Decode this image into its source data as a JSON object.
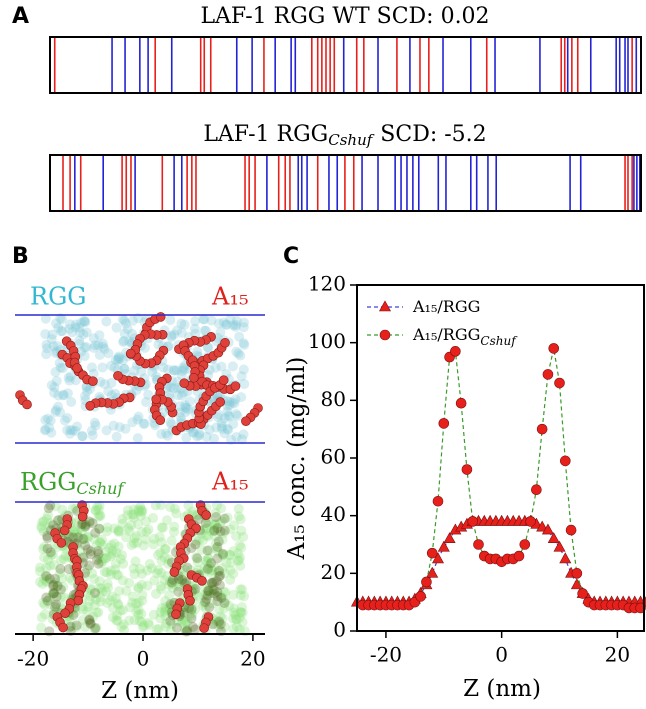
{
  "panel_labels": [
    "A",
    "B",
    "C"
  ],
  "sequences": {
    "xlim": [
      0,
      1
    ],
    "items": [
      {
        "title": "LAF-1 RGG WT SCD: 0.02",
        "series": [
          {
            "color": "#e8201c",
            "positions": [
              0.008,
              0.178,
              0.255,
              0.261,
              0.272,
              0.362,
              0.443,
              0.453,
              0.46,
              0.467,
              0.474,
              0.481,
              0.519,
              0.531,
              0.587,
              0.626,
              0.641,
              0.739,
              0.865,
              0.871,
              0.883,
              0.893,
              0.985
            ]
          },
          {
            "color": "#2323d6",
            "positions": [
              0.105,
              0.127,
              0.152,
              0.166,
              0.206,
              0.316,
              0.342,
              0.381,
              0.408,
              0.415,
              0.497,
              0.555,
              0.609,
              0.665,
              0.712,
              0.753,
              0.829,
              0.876,
              0.915,
              0.958,
              0.964,
              0.973,
              0.978,
              0.992
            ]
          }
        ]
      },
      {
        "title": "LAF-1 RGG",
        "title_sub": "Cshuf",
        "title_end": "SCD: -5.2",
        "series": [
          {
            "color": "#e8201c",
            "positions": [
              0.022,
              0.034,
              0.052,
              0.122,
              0.129,
              0.137,
              0.19,
              0.232,
              0.24,
              0.247,
              0.33,
              0.337,
              0.347,
              0.387,
              0.398,
              0.406,
              0.453,
              0.499,
              0.514,
              0.973,
              0.978,
              0.985
            ]
          },
          {
            "color": "#2323d6",
            "positions": [
              0.042,
              0.09,
              0.144,
              0.21,
              0.223,
              0.367,
              0.42,
              0.426,
              0.435,
              0.472,
              0.486,
              0.528,
              0.555,
              0.584,
              0.594,
              0.604,
              0.614,
              0.624,
              0.657,
              0.67,
              0.712,
              0.722,
              0.741,
              0.755,
              0.88,
              0.898,
              0.988,
              0.993,
              0.998
            ]
          }
        ]
      }
    ]
  },
  "snapshots": {
    "top_left_label": "RGG",
    "top_right_label": "A₁₅",
    "bottom_left_label": "RGG",
    "bottom_left_sub": "Cshuf",
    "bottom_right_label": "A₁₅",
    "xlim": [
      -23.3,
      22.2
    ],
    "xticks": [
      -20,
      0,
      20
    ],
    "xlabel": "Z (nm)"
  },
  "chart_data": {
    "type": "line",
    "xlabel": "Z (nm)",
    "ylabel": "A₁₅ conc. (mg/ml)",
    "xlim": [
      -25,
      24.6
    ],
    "ylim": [
      0,
      120
    ],
    "xticks": [
      -20,
      0,
      20
    ],
    "yticks": [
      0,
      20,
      40,
      60,
      80,
      100,
      120
    ],
    "legend": "upper left",
    "series": [
      {
        "name": "A₁₅/RGG",
        "color": "#4040d8",
        "marker": "triangle",
        "marker_color": "#e8201c",
        "x": [
          -25,
          -24,
          -23,
          -22,
          -21,
          -20,
          -19,
          -18,
          -17,
          -16,
          -15,
          -14,
          -13,
          -12,
          -11,
          -10,
          -9,
          -8,
          -7,
          -6,
          -5,
          -4,
          -3,
          -2,
          -1,
          0,
          1,
          2,
          3,
          4,
          5,
          6,
          7,
          8,
          9,
          10,
          11,
          12,
          13,
          14,
          15,
          16,
          17,
          18,
          19,
          20,
          21,
          22,
          23,
          24,
          25
        ],
        "values": [
          10,
          10,
          10,
          10,
          10,
          10,
          10,
          10,
          10,
          10,
          11,
          13,
          16,
          20,
          25,
          29,
          32,
          35,
          36,
          37,
          38,
          38,
          38,
          38,
          38,
          38,
          38,
          38,
          38,
          38,
          38,
          37,
          36,
          35,
          32,
          29,
          25,
          20,
          16,
          13,
          11,
          10,
          10,
          10,
          10,
          10,
          10,
          10,
          10,
          10,
          10
        ]
      },
      {
        "name": "A₁₅/RGG",
        "name_sub": "Cshuf",
        "color": "#3a9a2a",
        "marker": "circle",
        "marker_color": "#e8201c",
        "x": [
          -24,
          -23,
          -22,
          -21,
          -20,
          -19,
          -18,
          -17,
          -16,
          -15,
          -14,
          -13,
          -12,
          -11,
          -10,
          -9,
          -8,
          -7,
          -6,
          -5,
          -4,
          -3,
          -2,
          -1,
          0,
          1,
          2,
          3,
          4,
          5,
          6,
          7,
          8,
          9,
          10,
          11,
          12,
          13,
          14,
          15,
          16,
          17,
          18,
          19,
          20,
          21,
          22,
          23,
          24
        ],
        "values": [
          9,
          9,
          9,
          9,
          9,
          9,
          9,
          9,
          9,
          10,
          12,
          17,
          27,
          45,
          72,
          95,
          97,
          79,
          56,
          38,
          30,
          26,
          25,
          25,
          24,
          25,
          25,
          26,
          30,
          38,
          49,
          70,
          89,
          98,
          86,
          59,
          35,
          20,
          13,
          10,
          9,
          9,
          9,
          9,
          9,
          9,
          8,
          8,
          8
        ]
      }
    ]
  }
}
